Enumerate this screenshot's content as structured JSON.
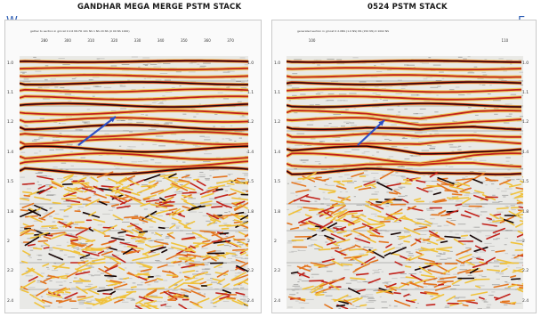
{
  "titles": {
    "left": "GANDHAR MEGA MERGE PSTM STACK",
    "right": "0524 PSTM STACK"
  },
  "compass": {
    "west": "W",
    "east": "E"
  },
  "left_panel": {
    "header_line": "gather to section in gmcat 0 2.6 NS FR 101 NS 1 NS 20 NS (0 00 NS 1000)",
    "trace_labels": [
      "280",
      "300",
      "310",
      "320",
      "330",
      "340",
      "350",
      "360",
      "370"
    ],
    "time_labels": [
      "1.0",
      "1.1",
      "1.2",
      "1.4",
      "1.5",
      "1.8",
      "2",
      "2.2",
      "2.4"
    ]
  },
  "right_panel": {
    "header_line": "generated section in gmcat 0 2.0NS (1.0 NS) NS (150 NS) 0 1002 NS",
    "trace_labels": [
      "100",
      "110"
    ],
    "time_labels": [
      "1.0",
      "1.1",
      "1.2",
      "1.4",
      "1.5",
      "1.8",
      "2",
      "2.2",
      "2.4"
    ]
  },
  "colors": {
    "arrow": "#2d4fc6",
    "peak_dark": "#160606",
    "peak_red": "#c2221b",
    "peak_orange": "#e4751f",
    "peak_yellow": "#f0c23b",
    "trough_gray": "#7d7d7d",
    "background": "#e9e9e6"
  }
}
